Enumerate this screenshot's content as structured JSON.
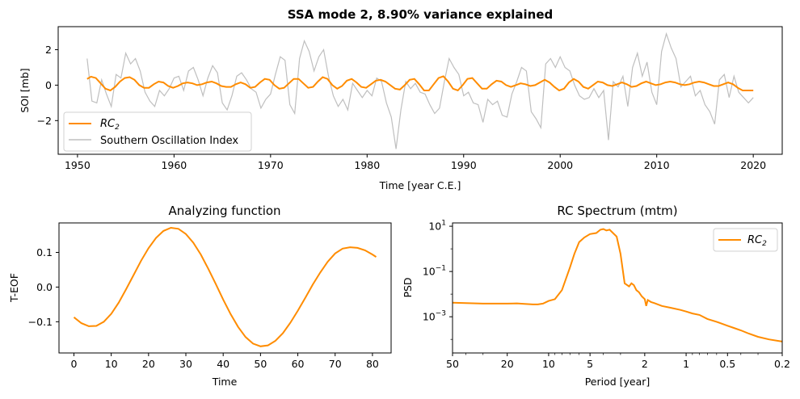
{
  "colors": {
    "rc": "#ff8c00",
    "soi": "#bfbfbf",
    "axes": "#000000",
    "background": "#ffffff"
  },
  "chart_data": [
    {
      "type": "line",
      "title": "SSA  mode 2, 8.90% variance explained",
      "xlabel": "Time [year C.E.]",
      "ylabel": "SOI [mb]",
      "xlim": [
        1948,
        2023
      ],
      "ylim": [
        -3.9,
        3.3
      ],
      "xticks": [
        "1950",
        "1960",
        "1970",
        "1980",
        "1990",
        "2000",
        "2010",
        "2020"
      ],
      "yticks": [
        "2",
        "0",
        "−2"
      ],
      "legend_placement": "lower-left",
      "grid": false,
      "series": [
        {
          "name": "RC",
          "name_subscript": "2",
          "color": "#ff8c00",
          "x": [
            1951,
            1951.4,
            1951.9,
            1952.4,
            1952.9,
            1953.4,
            1953.9,
            1954.4,
            1954.9,
            1955.4,
            1955.9,
            1956.4,
            1956.9,
            1957.4,
            1957.9,
            1958.4,
            1958.9,
            1959.4,
            1959.9,
            1960.4,
            1960.9,
            1961.4,
            1961.9,
            1962.4,
            1962.9,
            1963.4,
            1963.9,
            1964.4,
            1964.9,
            1965.4,
            1965.9,
            1966.4,
            1966.9,
            1967.4,
            1967.9,
            1968.4,
            1968.9,
            1969.4,
            1969.9,
            1970.4,
            1970.9,
            1971.4,
            1971.9,
            1972.4,
            1972.9,
            1973.4,
            1973.9,
            1974.4,
            1974.9,
            1975.4,
            1975.9,
            1976.4,
            1976.9,
            1977.4,
            1977.9,
            1978.4,
            1978.9,
            1979.4,
            1979.9,
            1980.4,
            1980.9,
            1981.4,
            1981.9,
            1982.4,
            1982.9,
            1983.4,
            1983.9,
            1984.4,
            1984.9,
            1985.4,
            1985.9,
            1986.4,
            1986.9,
            1987.4,
            1987.9,
            1988.4,
            1988.9,
            1989.4,
            1989.9,
            1990.4,
            1990.9,
            1991.4,
            1991.9,
            1992.4,
            1992.9,
            1993.4,
            1993.9,
            1994.4,
            1994.9,
            1995.4,
            1995.9,
            1996.4,
            1996.9,
            1997.4,
            1997.9,
            1998.4,
            1998.9,
            1999.4,
            1999.9,
            2000.4,
            2000.9,
            2001.4,
            2001.9,
            2002.4,
            2002.9,
            2003.4,
            2003.9,
            2004.4,
            2004.9,
            2005.4,
            2005.9,
            2006.4,
            2006.9,
            2007.4,
            2007.9,
            2008.4,
            2008.9,
            2009.4,
            2009.9,
            2010.4,
            2010.9,
            2011.4,
            2011.9,
            2012.4,
            2012.9,
            2013.4,
            2013.9,
            2014.4,
            2014.9,
            2015.4,
            2015.9,
            2016.4,
            2016.9,
            2017.4,
            2017.9,
            2018.4,
            2018.9,
            2019.4,
            2020
          ],
          "y": [
            0.35,
            0.48,
            0.4,
            0.1,
            -0.2,
            -0.3,
            -0.1,
            0.2,
            0.4,
            0.45,
            0.3,
            0.0,
            -0.15,
            -0.15,
            0.05,
            0.2,
            0.15,
            -0.05,
            -0.15,
            -0.05,
            0.1,
            0.15,
            0.1,
            0.0,
            0.05,
            0.15,
            0.2,
            0.1,
            -0.05,
            -0.1,
            -0.1,
            0.05,
            0.15,
            0.05,
            -0.15,
            -0.1,
            0.15,
            0.35,
            0.3,
            0.0,
            -0.2,
            -0.15,
            0.1,
            0.35,
            0.35,
            0.1,
            -0.15,
            -0.1,
            0.2,
            0.45,
            0.35,
            0.0,
            -0.2,
            -0.05,
            0.25,
            0.35,
            0.15,
            -0.1,
            -0.15,
            0.05,
            0.25,
            0.3,
            0.2,
            0.0,
            -0.2,
            -0.25,
            0.0,
            0.3,
            0.35,
            0.05,
            -0.3,
            -0.3,
            0.05,
            0.4,
            0.5,
            0.2,
            -0.2,
            -0.3,
            0.0,
            0.35,
            0.4,
            0.1,
            -0.2,
            -0.2,
            0.05,
            0.25,
            0.2,
            0.0,
            -0.1,
            0.0,
            0.1,
            0.05,
            -0.05,
            0.0,
            0.15,
            0.3,
            0.15,
            -0.1,
            -0.3,
            -0.2,
            0.15,
            0.35,
            0.2,
            -0.1,
            -0.2,
            0.0,
            0.2,
            0.15,
            0.0,
            -0.05,
            0.05,
            0.15,
            0.05,
            -0.1,
            -0.05,
            0.1,
            0.2,
            0.1,
            0.0,
            0.05,
            0.15,
            0.2,
            0.15,
            0.05,
            0.0,
            0.05,
            0.15,
            0.2,
            0.15,
            0.05,
            -0.05,
            -0.05,
            0.05,
            0.15,
            0.05,
            -0.15,
            -0.3,
            -0.3,
            -0.3
          ]
        },
        {
          "name": "Southern Oscillation Index",
          "color": "#bfbfbf",
          "x": [
            1951,
            1951.5,
            1952,
            1952.5,
            1953,
            1953.5,
            1954,
            1954.5,
            1955,
            1955.5,
            1956,
            1956.5,
            1957,
            1957.5,
            1958,
            1958.5,
            1959,
            1959.5,
            1960,
            1960.5,
            1961,
            1961.5,
            1962,
            1962.5,
            1963,
            1963.5,
            1964,
            1964.5,
            1965,
            1965.5,
            1966,
            1966.5,
            1967,
            1967.5,
            1968,
            1968.5,
            1969,
            1969.5,
            1970,
            1970.5,
            1971,
            1971.5,
            1972,
            1972.5,
            1973,
            1973.5,
            1974,
            1974.5,
            1975,
            1975.5,
            1976,
            1976.5,
            1977,
            1977.5,
            1978,
            1978.5,
            1979,
            1979.5,
            1980,
            1980.5,
            1981,
            1981.5,
            1982,
            1982.5,
            1983,
            1983.5,
            1984,
            1984.5,
            1985,
            1985.5,
            1986,
            1986.5,
            1987,
            1987.5,
            1988,
            1988.5,
            1989,
            1989.5,
            1990,
            1990.5,
            1991,
            1991.5,
            1992,
            1992.5,
            1993,
            1993.5,
            1994,
            1994.5,
            1995,
            1995.5,
            1996,
            1996.5,
            1997,
            1997.5,
            1998,
            1998.5,
            1999,
            1999.5,
            2000,
            2000.5,
            2001,
            2001.5,
            2002,
            2002.5,
            2003,
            2003.5,
            2004,
            2004.5,
            2005,
            2005.5,
            2006,
            2006.5,
            2007,
            2007.5,
            2008,
            2008.5,
            2009,
            2009.5,
            2010,
            2010.5,
            2011,
            2011.5,
            2012,
            2012.5,
            2013,
            2013.5,
            2014,
            2014.5,
            2015,
            2015.5,
            2016,
            2016.5,
            2017,
            2017.5,
            2018,
            2018.5,
            2019,
            2019.5,
            2020
          ],
          "y": [
            1.5,
            -0.9,
            -1.0,
            0.3,
            -0.5,
            -1.2,
            0.6,
            0.4,
            1.8,
            1.2,
            1.5,
            0.8,
            -0.4,
            -0.9,
            -1.2,
            -0.3,
            -0.6,
            -0.2,
            0.4,
            0.5,
            -0.3,
            0.8,
            1.0,
            0.3,
            -0.6,
            0.4,
            1.1,
            0.7,
            -1.0,
            -1.4,
            -0.6,
            0.5,
            0.7,
            0.3,
            -0.2,
            -0.4,
            -1.3,
            -0.8,
            -0.5,
            0.6,
            1.6,
            1.4,
            -1.1,
            -1.6,
            1.5,
            2.5,
            1.9,
            0.8,
            1.6,
            2.0,
            0.5,
            -0.6,
            -1.2,
            -0.8,
            -1.4,
            0.1,
            -0.3,
            -0.7,
            -0.3,
            -0.6,
            0.4,
            0.2,
            -1.0,
            -1.8,
            -3.6,
            -1.4,
            0.2,
            -0.2,
            0.1,
            -0.4,
            -0.5,
            -1.1,
            -1.6,
            -1.3,
            0.2,
            1.5,
            1.0,
            0.6,
            -0.6,
            -0.4,
            -1.0,
            -1.1,
            -2.1,
            -0.8,
            -1.1,
            -0.9,
            -1.7,
            -1.8,
            -0.5,
            0.2,
            1.0,
            0.8,
            -1.5,
            -1.9,
            -2.4,
            1.2,
            1.5,
            1.0,
            1.6,
            1.0,
            0.8,
            0.0,
            -0.6,
            -0.8,
            -0.7,
            -0.2,
            -0.7,
            -0.3,
            -3.1,
            0.2,
            -0.1,
            0.5,
            -1.2,
            1.0,
            1.8,
            0.5,
            1.3,
            -0.4,
            -1.1,
            1.9,
            2.9,
            2.1,
            1.5,
            -0.1,
            0.2,
            0.5,
            -0.6,
            -0.3,
            -1.1,
            -1.5,
            -2.2,
            0.3,
            0.6,
            -0.7,
            0.5,
            -0.4,
            -0.7,
            -1.0,
            -0.7
          ]
        }
      ]
    },
    {
      "type": "line",
      "title": "Analyzing function",
      "xlabel": "Time",
      "ylabel": "T-EOF",
      "xlim": [
        -4,
        85
      ],
      "ylim": [
        -0.19,
        0.185
      ],
      "xticks": [
        "0",
        "10",
        "20",
        "30",
        "40",
        "50",
        "60",
        "70",
        "80"
      ],
      "yticks": [
        "0.1",
        "0.0",
        "−0.1"
      ],
      "grid": false,
      "series": [
        {
          "color": "#ff8c00",
          "x": [
            0,
            2,
            4,
            6,
            8,
            10,
            12,
            14,
            16,
            18,
            20,
            22,
            24,
            26,
            28,
            30,
            32,
            34,
            36,
            38,
            40,
            42,
            44,
            46,
            48,
            50,
            52,
            54,
            56,
            58,
            60,
            62,
            64,
            66,
            68,
            70,
            72,
            74,
            76,
            78,
            80,
            81
          ],
          "y": [
            -0.087,
            -0.104,
            -0.113,
            -0.112,
            -0.1,
            -0.077,
            -0.045,
            -0.006,
            0.035,
            0.076,
            0.112,
            0.142,
            0.162,
            0.171,
            0.168,
            0.153,
            0.128,
            0.094,
            0.053,
            0.009,
            -0.036,
            -0.078,
            -0.115,
            -0.144,
            -0.163,
            -0.171,
            -0.168,
            -0.155,
            -0.133,
            -0.103,
            -0.068,
            -0.031,
            0.007,
            0.042,
            0.073,
            0.097,
            0.111,
            0.115,
            0.113,
            0.106,
            0.094,
            0.087
          ]
        }
      ]
    },
    {
      "type": "line",
      "title": "RC Spectrum (mtm)",
      "xlabel": "Period [year]",
      "ylabel": "PSD",
      "x_scale": "log-reversed",
      "y_scale": "log",
      "xlim": [
        50,
        0.2
      ],
      "ylim": [
        2.51e-05,
        14
      ],
      "xticks": [
        "50",
        "20",
        "10",
        "5",
        "2",
        "1",
        "0.5",
        "0.2"
      ],
      "yticks": [
        "10^1",
        "10^−1",
        "10^−3"
      ],
      "legend_placement": "top-right",
      "grid": false,
      "series": [
        {
          "name": "RC",
          "name_subscript": "2",
          "color": "#ff8c00",
          "x": [
            50,
            40,
            30,
            25,
            20,
            17,
            15,
            13,
            12,
            11,
            10,
            9,
            8,
            7,
            6.5,
            6,
            5.5,
            5,
            4.5,
            4.2,
            4,
            3.8,
            3.6,
            3.4,
            3.2,
            3.0,
            2.8,
            2.6,
            2.5,
            2.4,
            2.3,
            2.2,
            2.1,
            2.0,
            1.95,
            1.9,
            1.8,
            1.7,
            1.5,
            1.3,
            1.1,
            1.0,
            0.9,
            0.8,
            0.7,
            0.6,
            0.5,
            0.45,
            0.4,
            0.35,
            0.3,
            0.25,
            0.2
          ],
          "y": [
            0.0042,
            0.004,
            0.0038,
            0.0038,
            0.0038,
            0.0039,
            0.0037,
            0.0035,
            0.0035,
            0.0038,
            0.005,
            0.006,
            0.015,
            0.15,
            0.6,
            2.0,
            3.2,
            4.5,
            5.0,
            7.0,
            7.5,
            6.5,
            7.0,
            5.0,
            3.5,
            0.6,
            0.03,
            0.022,
            0.03,
            0.025,
            0.015,
            0.012,
            0.008,
            0.006,
            0.003,
            0.0055,
            0.0045,
            0.004,
            0.003,
            0.0025,
            0.002,
            0.0017,
            0.0014,
            0.0012,
            0.0008,
            0.0006,
            0.0004,
            0.00032,
            0.00025,
            0.00018,
            0.00013,
            0.0001,
            8e-05
          ]
        }
      ]
    }
  ]
}
